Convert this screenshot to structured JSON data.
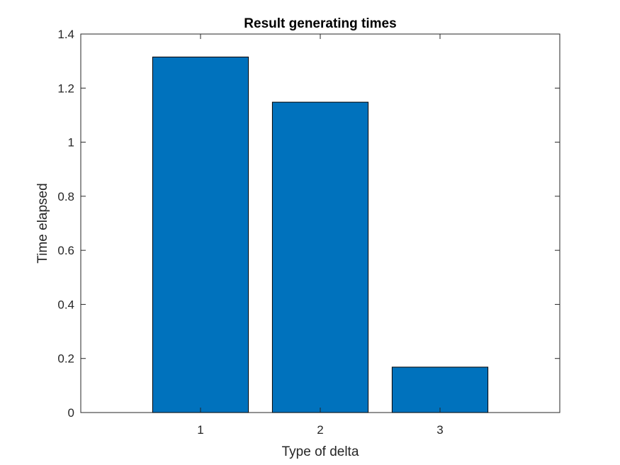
{
  "chart_data": {
    "type": "bar",
    "title": "Result generating times",
    "xlabel": "Type of delta",
    "ylabel": "Time elapsed",
    "categories": [
      "1",
      "2",
      "3"
    ],
    "values": [
      1.315,
      1.148,
      0.168
    ],
    "xlim": [
      0,
      4
    ],
    "ylim": [
      0,
      1.4
    ],
    "yticks": [
      0,
      0.2,
      0.4,
      0.6,
      0.8,
      1,
      1.2,
      1.4
    ],
    "ytick_labels": [
      "0",
      "0.2",
      "0.4",
      "0.6",
      "0.8",
      "1",
      "1.2",
      "1.4"
    ],
    "grid": false,
    "bar_color": "#0072BD"
  }
}
